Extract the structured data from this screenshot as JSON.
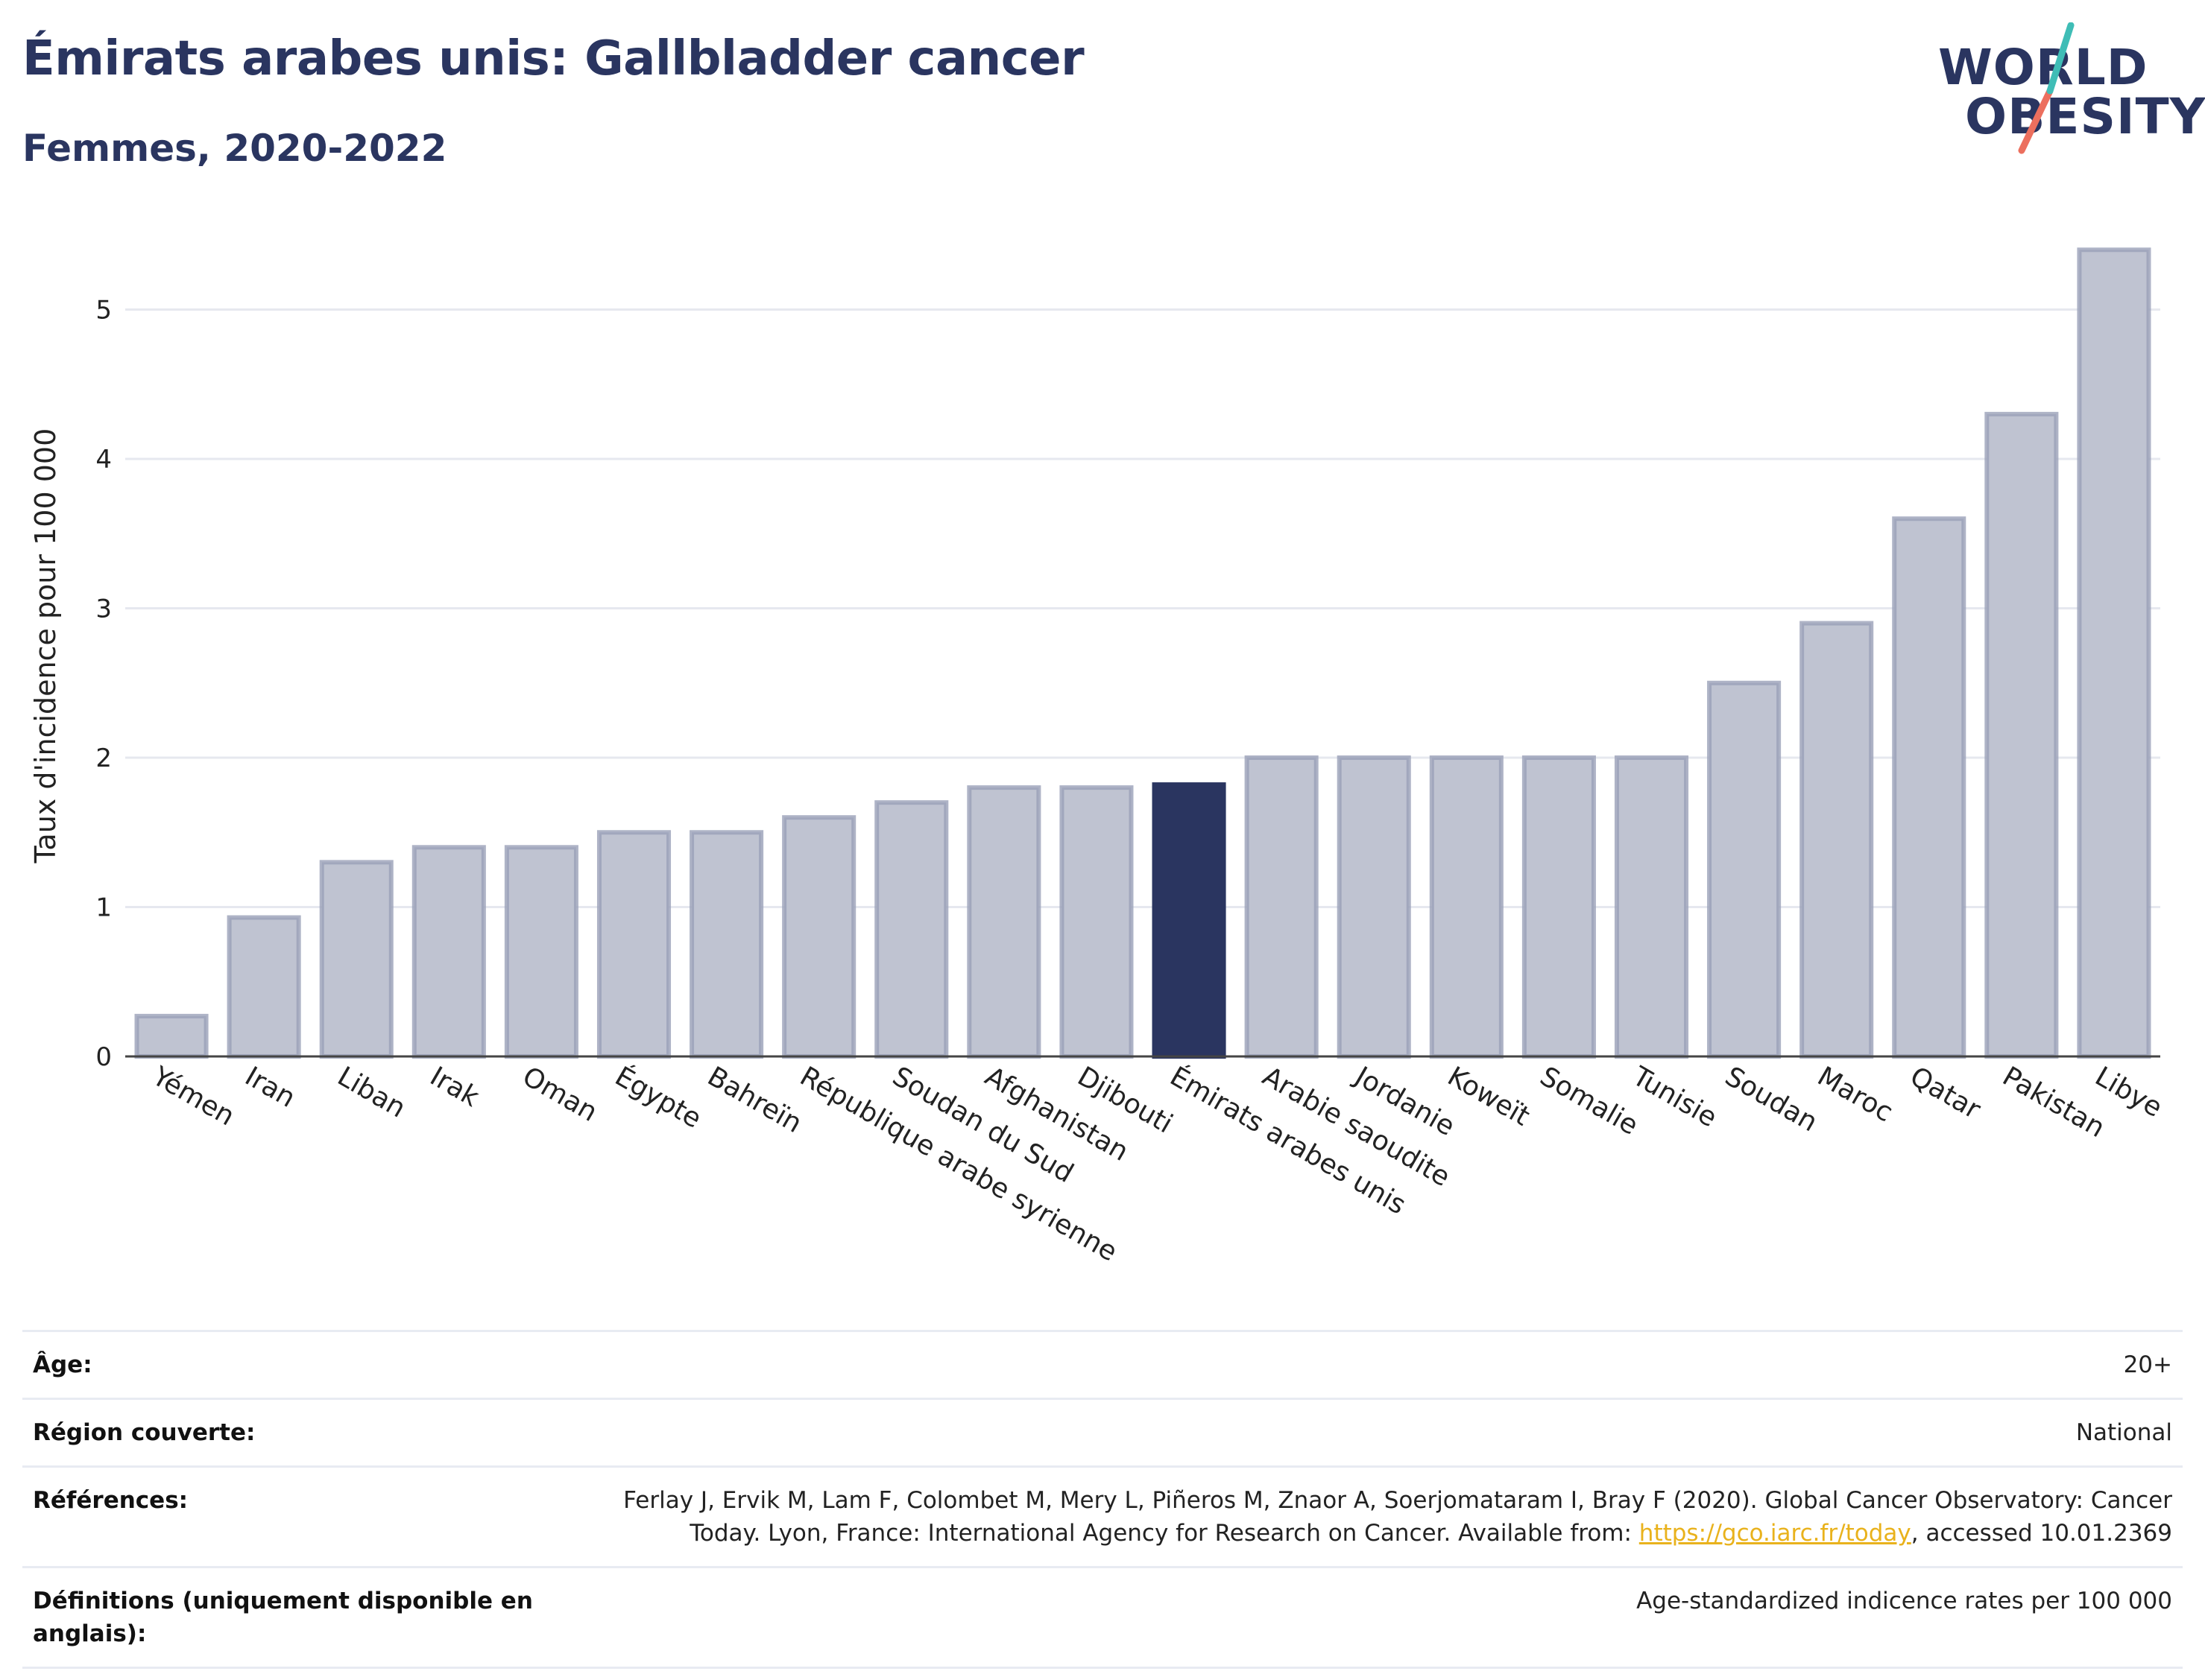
{
  "header": {
    "title": "Émirats arabes unis: Gallbladder cancer",
    "subtitle": "Femmes, 2020-2022"
  },
  "logo": {
    "line1": "WORLD",
    "line2": "OBESITY"
  },
  "colors": {
    "highlight": "#2a3560",
    "bar_fill": "#bfc3d1",
    "bar_stroke": "#9aa0b8",
    "title": "#2a3560",
    "logo_teal": "#3fbdb6",
    "logo_coral": "#ec6f5e",
    "link": "#e9b21c"
  },
  "chart_data": {
    "type": "bar",
    "ylabel": "Taux d'incidence pour 100 000",
    "xlabel": "",
    "ylim": [
      0,
      5.5
    ],
    "yticks": [
      0,
      1,
      2,
      3,
      4,
      5
    ],
    "grid": true,
    "highlight_category": "Émirats arabes unis",
    "categories": [
      "Yémen",
      "Iran",
      "Liban",
      "Irak",
      "Oman",
      "Égypte",
      "Bahreïn",
      "République arabe syrienne",
      "Soudan du Sud",
      "Afghanistan",
      "Djibouti",
      "Émirats arabes unis",
      "Arabie saoudite",
      "Jordanie",
      "Koweït",
      "Somalie",
      "Tunisie",
      "Soudan",
      "Maroc",
      "Qatar",
      "Pakistan",
      "Libye"
    ],
    "values": [
      0.27,
      0.93,
      1.3,
      1.4,
      1.4,
      1.5,
      1.5,
      1.6,
      1.7,
      1.8,
      1.8,
      1.82,
      2.0,
      2.0,
      2.0,
      2.0,
      2.0,
      2.5,
      2.9,
      3.6,
      4.3,
      5.4
    ]
  },
  "info": {
    "rows": [
      {
        "key": "Âge:",
        "value": "20+"
      },
      {
        "key": "Région couverte:",
        "value": "National"
      },
      {
        "key": "Références:",
        "value_before": "Ferlay J, Ervik M, Lam F, Colombet M, Mery L, Piñeros M, Znaor A, Soerjomataram I, Bray F (2020). Global Cancer Observatory: Cancer Today. Lyon, France: International Agency for Research on Cancer. Available from: ",
        "link": "https://gco.iarc.fr/today",
        "value_after": ", accessed 10.01.2369"
      },
      {
        "key": "Définitions (uniquement disponible en anglais):",
        "value": "Age-standardized indicence rates per 100 000"
      }
    ]
  }
}
